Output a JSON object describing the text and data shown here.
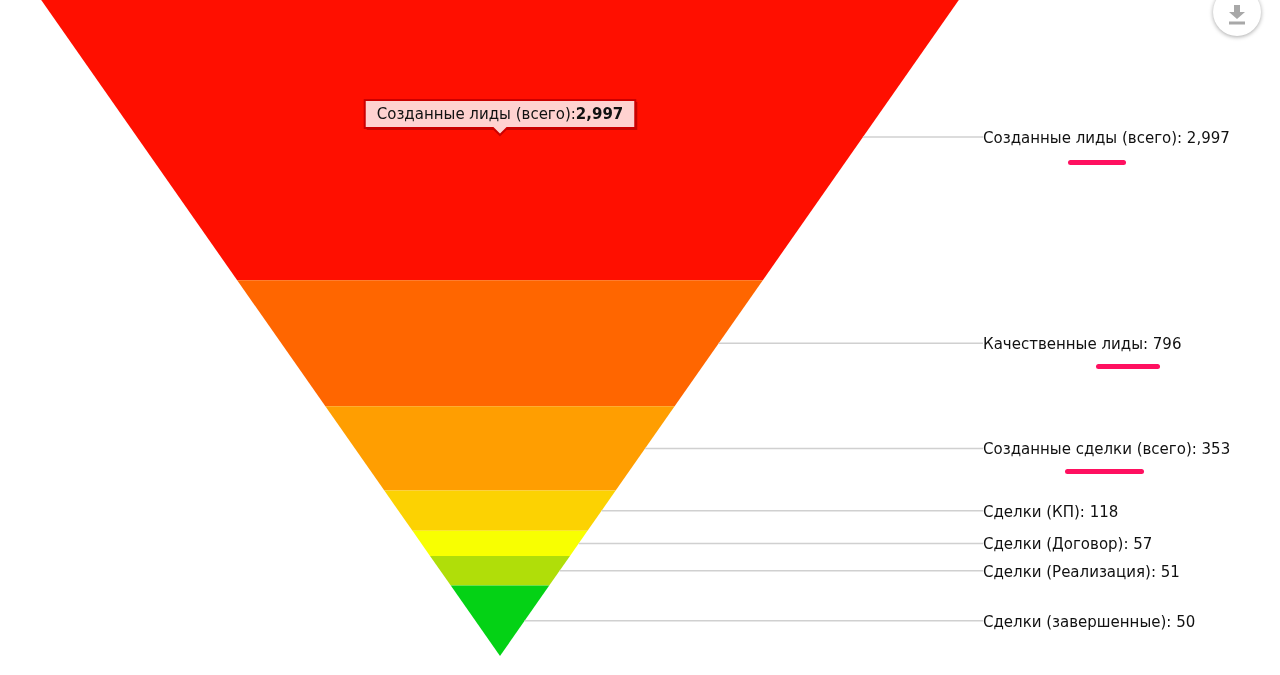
{
  "chart_data": {
    "type": "other",
    "categories": [
      "Созданные лиды (всего)",
      "Качественные лиды",
      "Созданные сделки (всего)",
      "Сделки (КП)",
      "Сделки (Договор)",
      "Сделки (Реализация)",
      "Сделки (завершенные)"
    ],
    "values": [
      2997,
      796,
      353,
      118,
      57,
      51,
      50
    ],
    "value_labels": [
      ": 2,997",
      ": 796",
      ": 353",
      ": 118",
      ": 57",
      ": 51",
      ": 50"
    ],
    "colors": [
      "#ff0f00",
      "#ff6600",
      "#ff9e01",
      "#fcd202",
      "#f8ff01",
      "#b0de09",
      "#04d215"
    ],
    "annotations": [
      "Созданные лиды (всего):2,997"
    ]
  }
}
